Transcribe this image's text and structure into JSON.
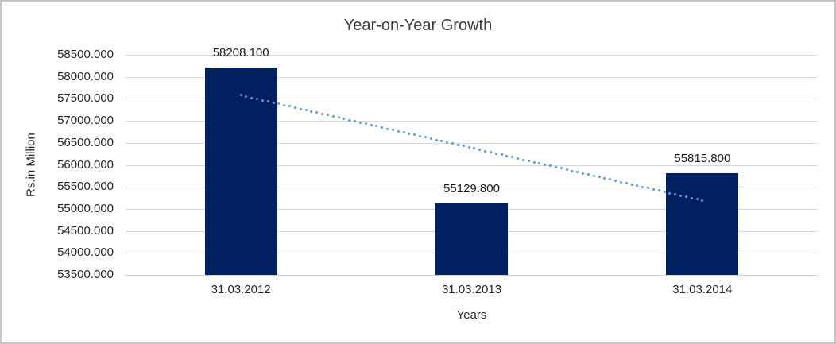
{
  "chart_data": {
    "type": "bar",
    "title": "Year-on-Year Growth",
    "xlabel": "Years",
    "ylabel": "Rs.in Million",
    "categories": [
      "31.03.2012",
      "31.03.2013",
      "31.03.2014"
    ],
    "values": [
      58208.1,
      55129.8,
      55815.8
    ],
    "data_labels": [
      "58208.100",
      "55129.800",
      "55815.800"
    ],
    "ylim": [
      53500,
      58500
    ],
    "ytick_step": 500,
    "ytick_labels": [
      "58500.000",
      "58000.000",
      "57500.000",
      "57000.000",
      "56500.000",
      "56000.000",
      "55500.000",
      "55000.000",
      "54500.000",
      "54000.000",
      "53500.000"
    ],
    "grid": true,
    "legend_position": "none",
    "trendline": {
      "type": "linear",
      "style": "dotted"
    },
    "colors": {
      "bar": "#002060",
      "trendline": "#5B9BD5",
      "gridline": "#D9D9D9",
      "axis_text": "#262626",
      "title_text": "#3A3A3A",
      "border": "#C6C6C6",
      "background": "#FFFFFF"
    }
  }
}
